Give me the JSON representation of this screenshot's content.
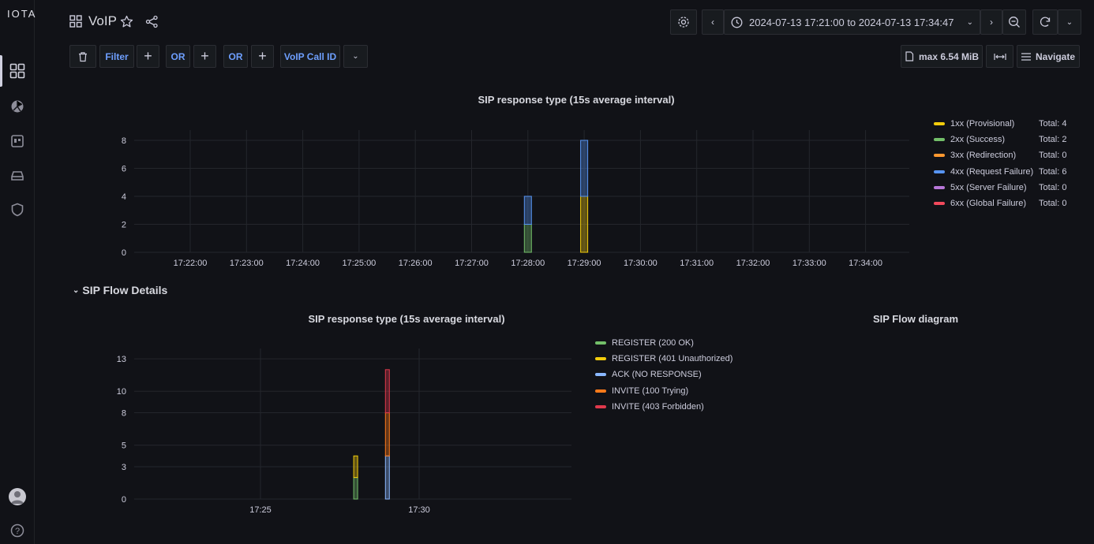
{
  "app": {
    "logo": "IOTA",
    "dashboard_title": "VoIP"
  },
  "timerange": {
    "label": "2024-07-13 17:21:00 to 2024-07-13 17:34:47"
  },
  "filterbar": {
    "filter_label": "Filter",
    "or1_label": "OR",
    "or2_label": "OR",
    "voip_label": "VoIP Call ID",
    "max_label": "max 6.54 MiB",
    "navigate_label": "Navigate"
  },
  "section": {
    "title": "SIP Flow Details"
  },
  "chart_top": {
    "title": "SIP response type (15s average interval)"
  },
  "chart_bottom": {
    "title": "SIP response type (15s average interval)"
  },
  "flow_diagram": {
    "title": "SIP Flow diagram"
  },
  "chart_data": [
    {
      "type": "bar",
      "title": "SIP response type (15s average interval)",
      "x_ticks": [
        "17:22:00",
        "17:23:00",
        "17:24:00",
        "17:25:00",
        "17:26:00",
        "17:27:00",
        "17:28:00",
        "17:29:00",
        "17:30:00",
        "17:31:00",
        "17:32:00",
        "17:33:00",
        "17:34:00"
      ],
      "y_ticks": [
        0,
        2,
        4,
        6,
        8
      ],
      "ylim": [
        0,
        8
      ],
      "stacked": true,
      "legend_position": "right",
      "grid": true,
      "categories": [
        "17:28:00",
        "17:29:00"
      ],
      "series": [
        {
          "name": "1xx (Provisional)",
          "color": "#f2cc0c",
          "values": [
            0,
            4
          ],
          "total": "Total: 4"
        },
        {
          "name": "2xx (Success)",
          "color": "#73bf69",
          "values": [
            2,
            0
          ],
          "total": "Total: 2"
        },
        {
          "name": "3xx (Redirection)",
          "color": "#ff9830",
          "values": [
            0,
            0
          ],
          "total": "Total: 0"
        },
        {
          "name": "4xx (Request Failure)",
          "color": "#5794f2",
          "values": [
            2,
            4
          ],
          "total": "Total: 6"
        },
        {
          "name": "5xx (Server Failure)",
          "color": "#b877d9",
          "values": [
            0,
            0
          ],
          "total": "Total: 0"
        },
        {
          "name": "6xx (Global Failure)",
          "color": "#f2495c",
          "values": [
            0,
            0
          ],
          "total": "Total: 0"
        }
      ]
    },
    {
      "type": "bar",
      "title": "SIP response type (15s average interval)",
      "x_ticks": [
        "17:25",
        "17:30"
      ],
      "y_ticks": [
        "0",
        "3",
        "5",
        "8",
        "10",
        "13"
      ],
      "ylim": [
        0,
        12.5
      ],
      "stacked": true,
      "legend_position": "right",
      "grid": true,
      "categories": [
        "17:28:00",
        "17:29:00"
      ],
      "series": [
        {
          "name": "REGISTER (200 OK)",
          "color": "#73bf69",
          "values": [
            2,
            0
          ]
        },
        {
          "name": "REGISTER (401 Unauthorized)",
          "color": "#f2cc0c",
          "values": [
            2,
            0
          ]
        },
        {
          "name": "ACK (NO RESPONSE)",
          "color": "#8ab8ff",
          "values": [
            0,
            4
          ]
        },
        {
          "name": "INVITE (100 Trying)",
          "color": "#ff7a1a",
          "values": [
            0,
            4
          ]
        },
        {
          "name": "INVITE (403 Forbidden)",
          "color": "#e0394c",
          "values": [
            0,
            4
          ]
        }
      ]
    }
  ]
}
